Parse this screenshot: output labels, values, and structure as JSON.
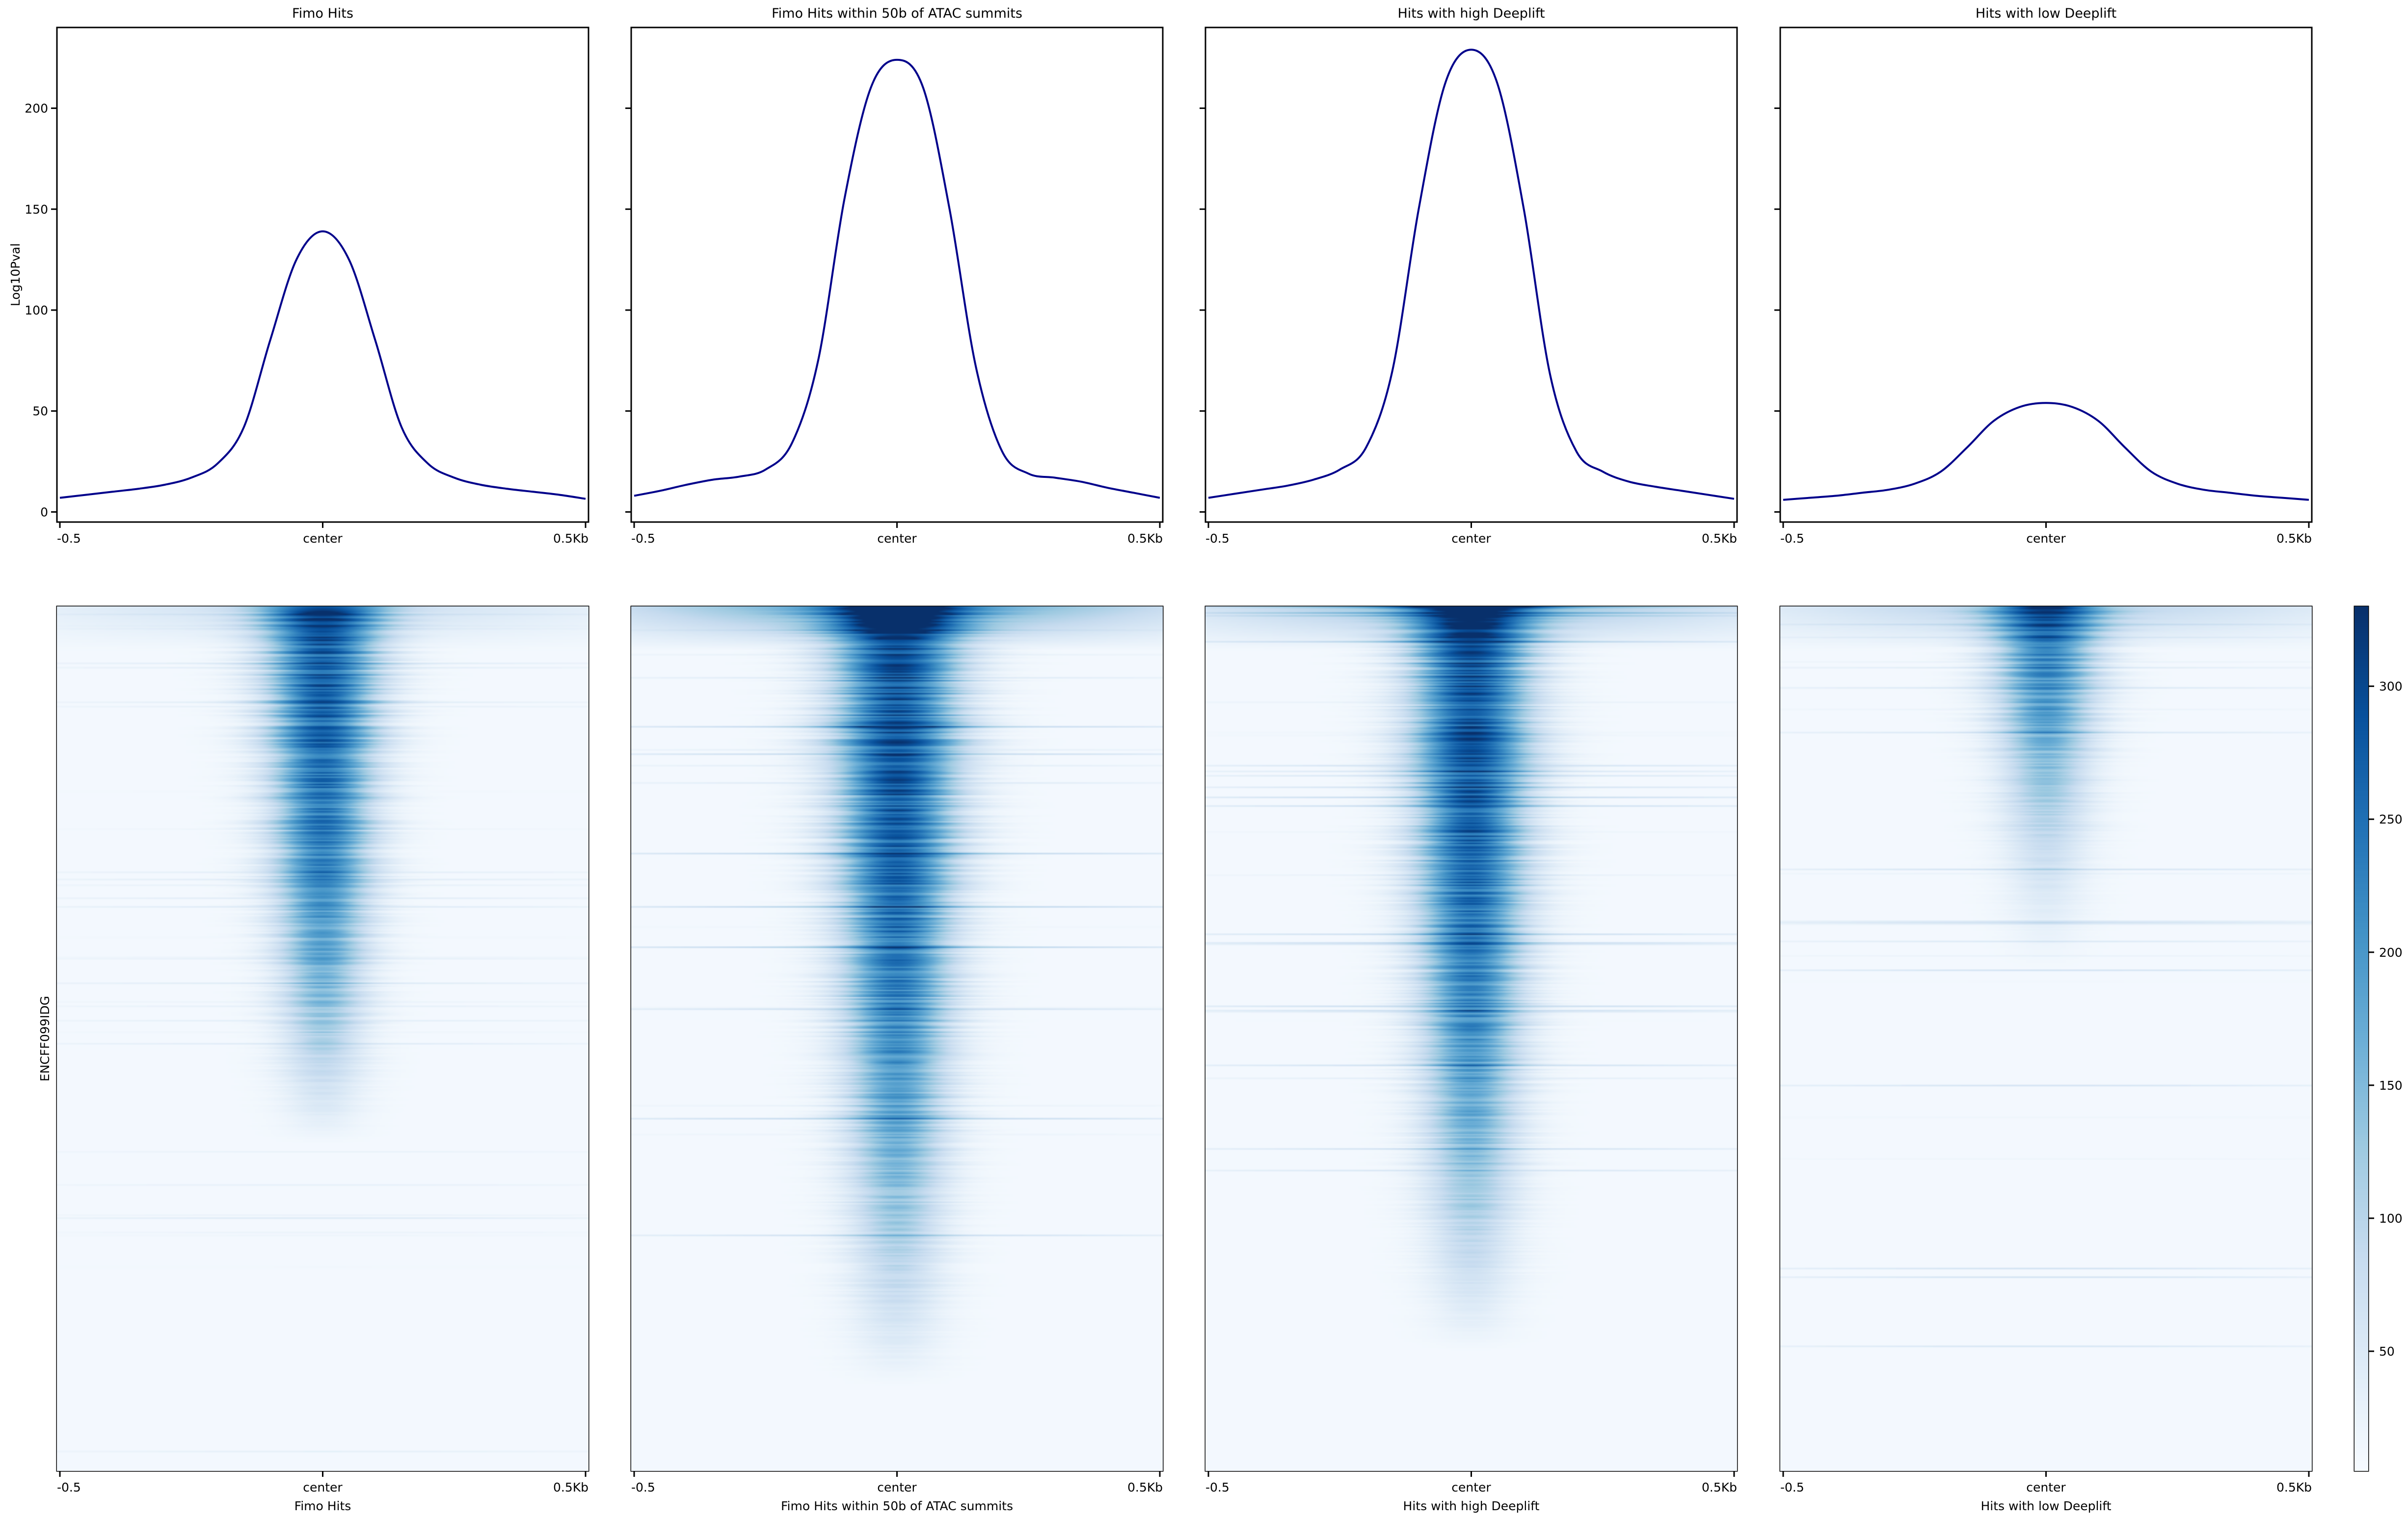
{
  "chart_data": [
    {
      "type": "line",
      "panels": [
        {
          "title": "Fimo Hits",
          "x": [
            -0.5,
            -0.45,
            -0.4,
            -0.35,
            -0.3,
            -0.25,
            -0.2,
            -0.15,
            -0.1,
            -0.05,
            0,
            0.05,
            0.1,
            0.15,
            0.2,
            0.25,
            0.3,
            0.35,
            0.4,
            0.45,
            0.5
          ],
          "y": [
            7,
            8.5,
            10,
            11.5,
            13.5,
            17,
            24,
            42,
            85,
            125,
            139,
            125,
            85,
            42,
            24,
            17,
            13.5,
            11.5,
            10,
            8.5,
            6.5
          ]
        },
        {
          "title": "Fimo Hits within 50b of ATAC summits",
          "x": [
            -0.5,
            -0.45,
            -0.4,
            -0.35,
            -0.3,
            -0.25,
            -0.2,
            -0.15,
            -0.1,
            -0.05,
            0,
            0.05,
            0.1,
            0.15,
            0.2,
            0.25,
            0.3,
            0.35,
            0.4,
            0.45,
            0.5
          ],
          "y": [
            8,
            10.5,
            13.5,
            16,
            17.5,
            21,
            34,
            75,
            155,
            210,
            224,
            210,
            150,
            72,
            30,
            19,
            17,
            15,
            12,
            9.5,
            7
          ]
        },
        {
          "title": "Hits with high Deeplift",
          "x": [
            -0.5,
            -0.45,
            -0.4,
            -0.35,
            -0.3,
            -0.25,
            -0.2,
            -0.15,
            -0.1,
            -0.05,
            0,
            0.05,
            0.1,
            0.15,
            0.2,
            0.25,
            0.3,
            0.35,
            0.4,
            0.45,
            0.5
          ],
          "y": [
            7,
            9,
            11,
            13,
            16,
            21,
            32,
            70,
            150,
            212,
            229,
            212,
            150,
            68,
            30,
            20,
            15,
            12.5,
            10.5,
            8.5,
            6.5
          ]
        },
        {
          "title": "Hits with low Deeplift",
          "x": [
            -0.5,
            -0.45,
            -0.4,
            -0.35,
            -0.3,
            -0.25,
            -0.2,
            -0.15,
            -0.1,
            -0.05,
            0,
            0.05,
            0.1,
            0.15,
            0.2,
            0.25,
            0.3,
            0.35,
            0.4,
            0.45,
            0.5
          ],
          "y": [
            6,
            7,
            8,
            9.5,
            11,
            14,
            20,
            32,
            45,
            52,
            54,
            52,
            45,
            32,
            20,
            14,
            11,
            9.5,
            8,
            7,
            6
          ]
        }
      ],
      "ylabel": "Log10Pval",
      "ylim": [
        -5,
        240
      ],
      "yticks": [
        "0",
        "50",
        "100",
        "150",
        "200"
      ],
      "ytick_values": [
        0,
        50,
        100,
        150,
        200
      ],
      "xticks": [
        "-0.5",
        "center",
        "0.5Kb"
      ],
      "xlim": [
        -0.5,
        0.5
      ],
      "line_color": "#00008b",
      "grid": false
    },
    {
      "type": "heatmap",
      "panels": [
        {
          "xlabel": "Fimo Hits"
        },
        {
          "xlabel": "Fimo Hits within 50b of ATAC summits"
        },
        {
          "xlabel": "Hits with high Deeplift"
        },
        {
          "xlabel": "Hits with low Deeplift"
        }
      ],
      "ylabel": "ENCFF099IDG",
      "xticks": [
        "-0.5",
        "center",
        "0.5Kb"
      ],
      "colormap": "Blues",
      "colorbar": {
        "range": [
          5,
          330
        ],
        "ticks": [
          "50",
          "100",
          "150",
          "200",
          "250",
          "300"
        ],
        "tick_values": [
          50,
          100,
          150,
          200,
          250,
          300
        ]
      },
      "colors": [
        "#f7fbff",
        "#deebf7",
        "#c6dbef",
        "#9ecae1",
        "#6baed6",
        "#4292c6",
        "#2171b5",
        "#08519c",
        "#08306b"
      ]
    }
  ]
}
